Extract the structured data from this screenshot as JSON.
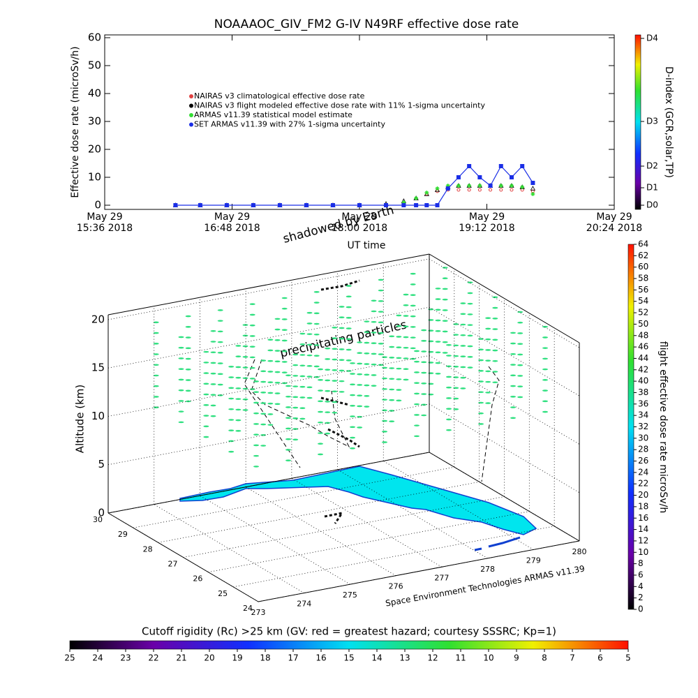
{
  "chart_data": [
    {
      "type": "line",
      "title": "NOAAAOC_GIV_FM2 G-IV   N49RF  effective dose rate",
      "ylabel": "Effective dose rate (microSv/h)",
      "xlabel": "UT time",
      "xlim": [
        936,
        1224
      ],
      "xticks": [
        {
          "value": 936,
          "label": "May 29\n15:36 2018"
        },
        {
          "value": 1008,
          "label": "May 29\n16:48 2018"
        },
        {
          "value": 1080,
          "label": "May 29\n18:00 2018"
        },
        {
          "value": 1152,
          "label": "May 29\n19:12 2018"
        },
        {
          "value": 1224,
          "label": "May 29\n20:24 2018"
        }
      ],
      "ylim": [
        -1.5,
        61
      ],
      "yticks": [
        0,
        10,
        20,
        30,
        40,
        50,
        60
      ],
      "y2label": "D-index (GCR,solar,TP)",
      "y2lim": [
        -1.5,
        61
      ],
      "y2ticks": [
        {
          "value": 0,
          "label": "D0"
        },
        {
          "value": 6.25,
          "label": "D1"
        },
        {
          "value": 14,
          "label": "D2"
        },
        {
          "value": 30,
          "label": "D3"
        },
        {
          "value": 59.75,
          "label": "D4"
        }
      ],
      "x": [
        976,
        990,
        1005,
        1020,
        1035,
        1050,
        1065,
        1080,
        1095,
        1105,
        1112,
        1118,
        1124,
        1130,
        1136,
        1142,
        1148,
        1154,
        1160,
        1166,
        1172,
        1178
      ],
      "series": [
        {
          "name": "NAIRAS v3 climatological effective dose rate",
          "color": "#e04040",
          "marker": "star",
          "values": [
            null,
            null,
            null,
            null,
            null,
            null,
            null,
            null,
            null,
            null,
            null,
            4,
            5,
            5.5,
            5.5,
            5.5,
            5.5,
            5.5,
            5.5,
            5.5,
            5.5,
            5
          ]
        },
        {
          "name": "NAIRAS v3 flight modeled effective dose rate with 11% 1-sigma uncertainty",
          "color": "#000000",
          "marker": "triangle",
          "values": [
            0,
            0,
            0,
            0,
            0,
            0,
            0,
            0,
            0.5,
            1.5,
            2.5,
            4,
            5.5,
            6.5,
            7,
            7,
            7,
            7,
            7,
            7,
            6.5,
            6
          ]
        },
        {
          "name": "ARMAS v11.39 statistical model estimate",
          "color": "#33dd33",
          "marker": "asterisk",
          "values": [
            0,
            0,
            0,
            0,
            0,
            0,
            0,
            0,
            0,
            1,
            2.5,
            4.5,
            6,
            7,
            7,
            7,
            7,
            7,
            7,
            7,
            6.5,
            4
          ]
        },
        {
          "name": "SET ARMAS v11.39 with 27% 1-sigma uncertainty",
          "color": "#1a2ee6",
          "marker": "circle",
          "values": [
            0,
            0,
            0,
            0,
            0,
            0,
            0,
            0,
            0,
            0,
            0,
            0,
            0,
            6,
            10,
            14,
            10,
            7,
            14,
            10,
            14,
            8
          ]
        }
      ]
    },
    {
      "type": "scatter3d",
      "zlabel": "Altitude (km)",
      "zlim": [
        0,
        20.5
      ],
      "zticks": [
        0,
        5,
        10,
        15,
        20
      ],
      "ylim": [
        24,
        30
      ],
      "yticks": [
        24,
        25,
        26,
        27,
        28,
        29,
        30
      ],
      "xlim": [
        273,
        280
      ],
      "xticks": [
        273,
        274,
        275,
        276,
        277,
        278,
        279,
        280
      ],
      "annotations": [
        "shadowed by Earth",
        "precipitating particles",
        "Space Environment Technologies ARMAS v11.39"
      ],
      "colorbar": {
        "label": "flight effective dose rate microSv/h",
        "lim": [
          0,
          64
        ],
        "ticks": [
          0,
          2,
          4,
          6,
          8,
          10,
          12,
          14,
          16,
          18,
          20,
          22,
          24,
          26,
          28,
          30,
          32,
          34,
          36,
          38,
          40,
          42,
          44,
          46,
          48,
          50,
          52,
          54,
          56,
          58,
          60,
          62,
          64
        ]
      }
    },
    {
      "type": "colorbar",
      "title": "Cutoff rigidity (Rc) >25 km (GV: red = greatest hazard; courtesy SSSRC; Kp=1)",
      "xlim": [
        25,
        5
      ],
      "xticks": [
        25,
        24,
        23,
        22,
        21,
        20,
        19,
        18,
        17,
        16,
        15,
        14,
        13,
        12,
        11,
        10,
        9,
        8,
        7,
        6,
        5
      ]
    }
  ]
}
